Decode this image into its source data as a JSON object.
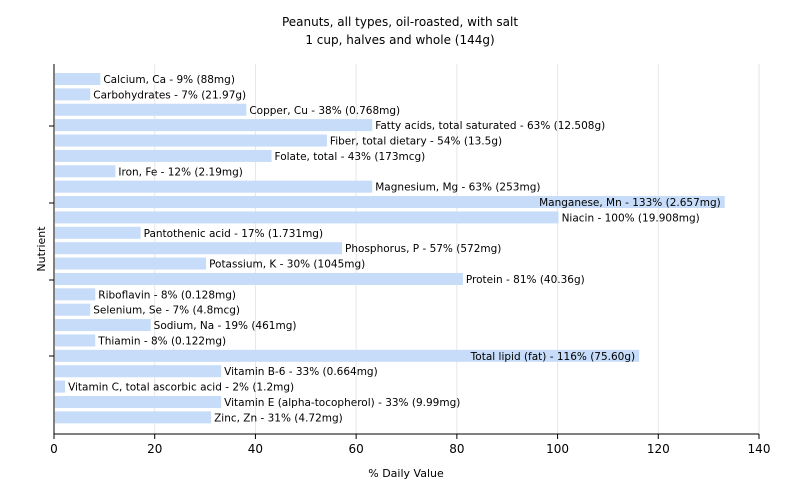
{
  "chart_data": {
    "type": "bar",
    "orientation": "horizontal",
    "title": "Peanuts, all types, oil-roasted, with salt",
    "subtitle": "1 cup, halves and whole (144g)",
    "xlabel": "% Daily Value",
    "ylabel": "Nutrient",
    "xlim": [
      0,
      140
    ],
    "xticks": [
      0,
      20,
      40,
      60,
      80,
      100,
      120,
      140
    ],
    "grid": true,
    "bar_color": "#c6dcf8",
    "categories": [
      "Calcium, Ca",
      "Carbohydrates",
      "Copper, Cu",
      "Fatty acids, total saturated",
      "Fiber, total dietary",
      "Folate, total",
      "Iron, Fe",
      "Magnesium, Mg",
      "Manganese, Mn",
      "Niacin",
      "Pantothenic acid",
      "Phosphorus, P",
      "Potassium, K",
      "Protein",
      "Riboflavin",
      "Selenium, Se",
      "Sodium, Na",
      "Thiamin",
      "Total lipid (fat)",
      "Vitamin B-6",
      "Vitamin C, total ascorbic acid",
      "Vitamin E (alpha-tocopherol)",
      "Zinc, Zn"
    ],
    "values": [
      9,
      7,
      38,
      63,
      54,
      43,
      12,
      63,
      133,
      100,
      17,
      57,
      30,
      81,
      8,
      7,
      19,
      8,
      116,
      33,
      2,
      33,
      31
    ],
    "labels": [
      "Calcium, Ca - 9% (88mg)",
      "Carbohydrates - 7% (21.97g)",
      "Copper, Cu - 38% (0.768mg)",
      "Fatty acids, total saturated - 63% (12.508g)",
      "Fiber, total dietary - 54% (13.5g)",
      "Folate, total - 43% (173mcg)",
      "Iron, Fe - 12% (2.19mg)",
      "Magnesium, Mg - 63% (253mg)",
      "Manganese, Mn - 133% (2.657mg)",
      "Niacin - 100% (19.908mg)",
      "Pantothenic acid - 17% (1.731mg)",
      "Phosphorus, P - 57% (572mg)",
      "Potassium, K - 30% (1045mg)",
      "Protein - 81% (40.36g)",
      "Riboflavin - 8% (0.128mg)",
      "Selenium, Se - 7% (4.8mcg)",
      "Sodium, Na - 19% (461mg)",
      "Thiamin - 8% (0.122mg)",
      "Total lipid (fat) - 116% (75.60g)",
      "Vitamin B-6 - 33% (0.664mg)",
      "Vitamin C, total ascorbic acid - 2% (1.2mg)",
      "Vitamin E (alpha-tocopherol) - 33% (9.99mg)",
      "Zinc, Zn - 31% (4.72mg)"
    ]
  }
}
